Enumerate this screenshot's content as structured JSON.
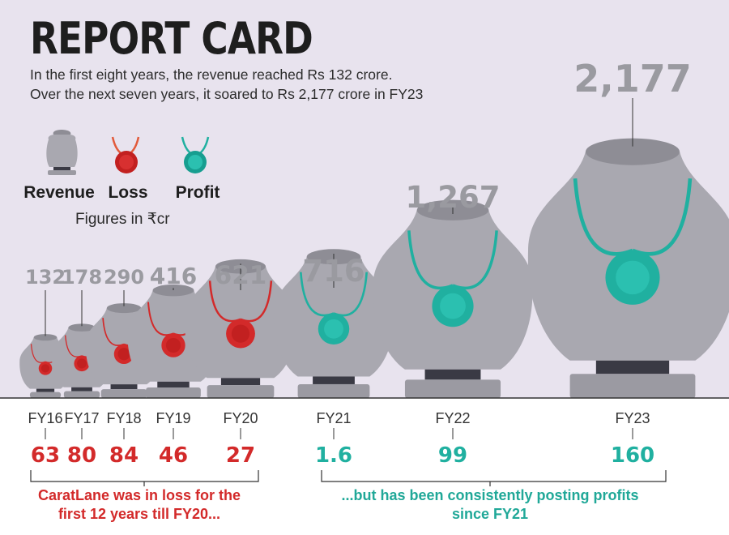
{
  "title": "REPORT CARD",
  "subtitle_lines": [
    "In the first eight years, the revenue reached Rs 132 crore.",
    "Over the next seven years, it soared to Rs 2,177 crore in FY23"
  ],
  "legend": {
    "revenue": "Revenue",
    "loss": "Loss",
    "profit": "Profit"
  },
  "units_note": "Figures in ₹cr",
  "notes": {
    "loss": [
      "CaratLane was in loss for the",
      "first 12 years till FY20..."
    ],
    "profit": [
      "...but has been consistently posting profits",
      "since FY21"
    ]
  },
  "colors": {
    "background": "#e8e3ee",
    "bust": "#a9a8b0",
    "bust_dark": "#8e8d95",
    "loss": "#d32a2a",
    "profit": "#20b0a0",
    "revenue_label": "#9a9aa0"
  },
  "chart_data": {
    "type": "bar",
    "categories": [
      "FY16",
      "FY17",
      "FY18",
      "FY19",
      "FY20",
      "FY21",
      "FY22",
      "FY23"
    ],
    "series": [
      {
        "name": "Revenue",
        "values": [
          132,
          178,
          290,
          416,
          621,
          716,
          1267,
          2177
        ]
      },
      {
        "name": "Loss",
        "values": [
          63,
          80,
          84,
          46,
          27,
          null,
          null,
          null
        ]
      },
      {
        "name": "Profit",
        "values": [
          null,
          null,
          null,
          null,
          null,
          1.6,
          99,
          160
        ]
      }
    ],
    "revenue_labels": [
      "132",
      "178",
      "290",
      "416",
      "621",
      "716",
      "1,267",
      "2,177"
    ],
    "pl_labels": [
      "63",
      "80",
      "84",
      "46",
      "27",
      "1.6",
      "99",
      "160"
    ],
    "pl_type": [
      "loss",
      "loss",
      "loss",
      "loss",
      "loss",
      "profit",
      "profit",
      "profit"
    ],
    "xlabel": "",
    "ylabel": ""
  }
}
